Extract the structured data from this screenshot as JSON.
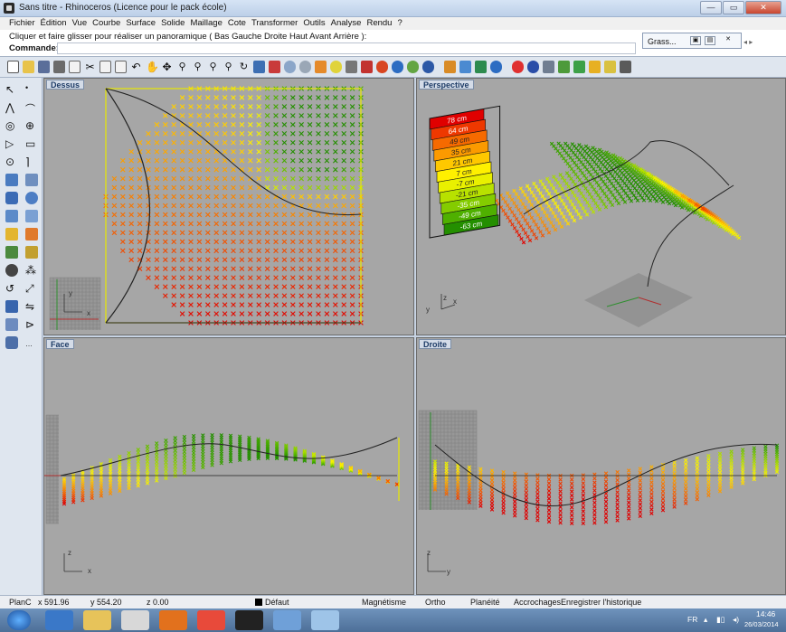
{
  "window": {
    "title": "Sans titre - Rhinoceros (Licence pour le pack école)"
  },
  "menus": [
    "Fichier",
    "Édition",
    "Vue",
    "Courbe",
    "Surface",
    "Solide",
    "Maillage",
    "Cote",
    "Transformer",
    "Outils",
    "Analyse",
    "Rendu",
    "?"
  ],
  "command": {
    "history": "Cliquer et faire glisser pour réaliser un panoramique ( Bas  Gauche  Droite  Haut  Avant  Arrière ):",
    "label": "Commande:",
    "value": ""
  },
  "floating_panel": {
    "label": "Grass..."
  },
  "viewports": {
    "top": {
      "name": "Dessus"
    },
    "perspective": {
      "name": "Perspective"
    },
    "front": {
      "name": "Face"
    },
    "right": {
      "name": "Droite"
    }
  },
  "legend": {
    "items": [
      "78 cm",
      "64 cm",
      "49 cm",
      "35 cm",
      "21 cm",
      "7 cm",
      "-7 cm",
      "-21 cm",
      "-35 cm",
      "-49 cm",
      "-63 cm"
    ],
    "colors": [
      "#e00000",
      "#ee3800",
      "#f66a00",
      "#fb9a00",
      "#ffc800",
      "#fff000",
      "#e9f000",
      "#b8e100",
      "#84cc00",
      "#4fb000",
      "#248f00"
    ]
  },
  "axes": {
    "top": {
      "x": "x",
      "y": "y"
    },
    "perspective": {
      "x": "x",
      "y": "y",
      "z": "z"
    },
    "front": {
      "x": "x",
      "z": "z"
    },
    "right": {
      "y": "y",
      "z": "z"
    }
  },
  "status": {
    "plane": "PlanC",
    "x": "x 591.96",
    "y": "y 554.20",
    "z": "z 0.00",
    "layer": "Défaut",
    "magnetisme": "Magnétisme",
    "ortho": "Ortho",
    "planeite": "Planéité",
    "accrochages": "Accrochages",
    "historique": "Enregistrer l'historique"
  },
  "tray": {
    "lang": "FR",
    "time": "14:46",
    "date": "26/03/2014"
  },
  "colors": {
    "viewport_bg": "#a6a6a6",
    "viewport_border": "#6b6b6b",
    "curve": "#222222"
  }
}
